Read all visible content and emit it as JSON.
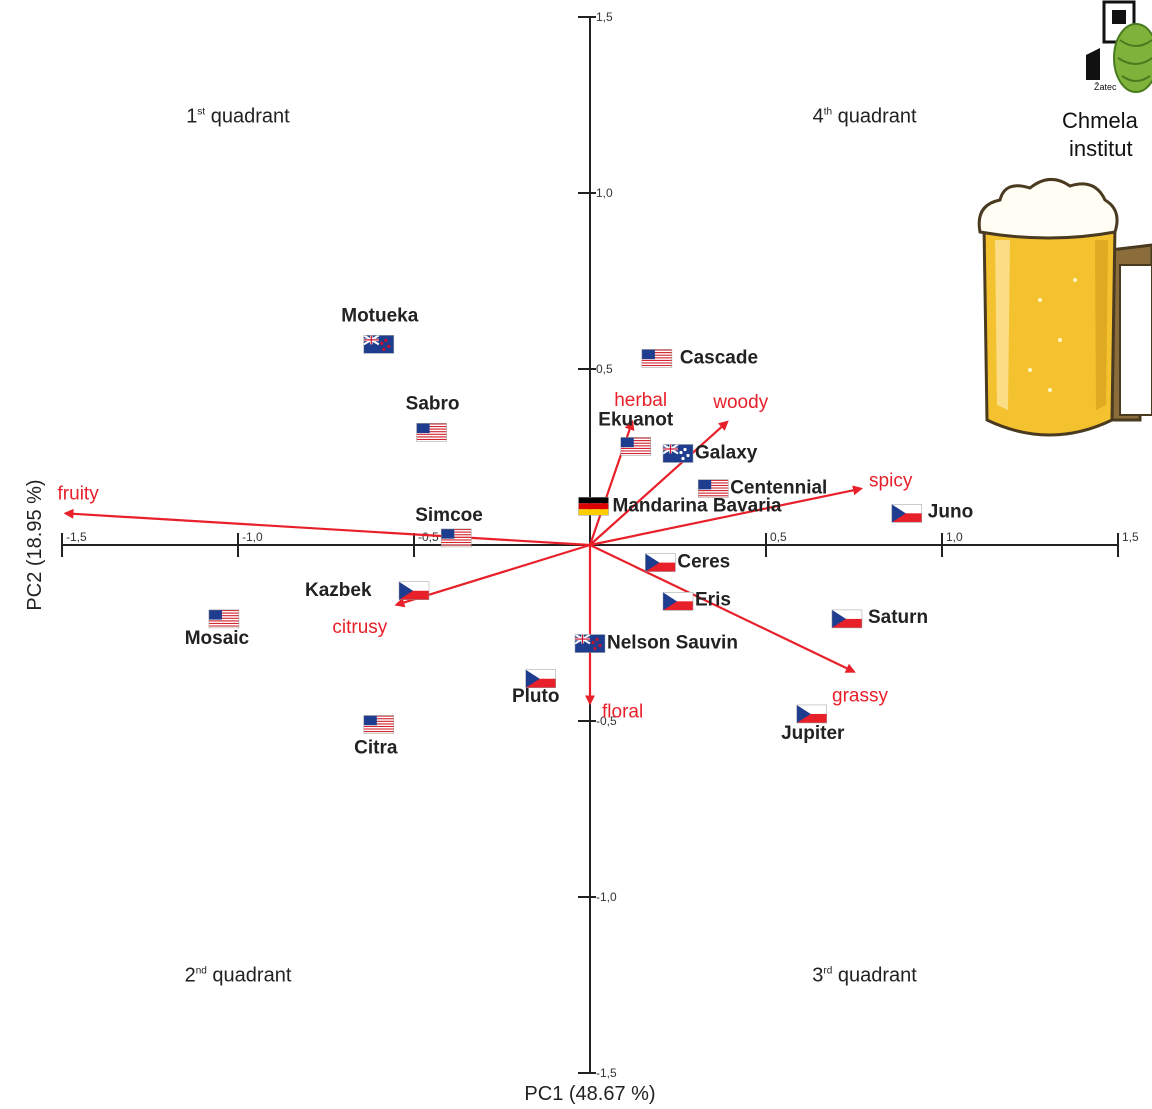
{
  "chart_data": {
    "type": "scatter",
    "subtype": "pca-biplot",
    "xlabel": "PC1 (48.67 %)",
    "ylabel": "PC2 (18.95 %)",
    "xlim": [
      -1.5,
      1.5
    ],
    "ylim": [
      -1.5,
      1.5
    ],
    "x_ticks": [
      -1.5,
      -1.0,
      -0.5,
      0.5,
      1.0,
      1.5
    ],
    "x_tick_labels": [
      "-1,5",
      "-1,0",
      "-0,5",
      "0,5",
      "1,0",
      "1,5"
    ],
    "y_ticks": [
      1.5,
      1.0,
      0.5,
      -0.5,
      -1.0,
      -1.5
    ],
    "y_tick_labels": [
      "1,5",
      "1,0",
      "0,5",
      "-0,5",
      "-1,0",
      "-1,5"
    ],
    "grid": false,
    "quadrants": [
      {
        "id": "q1",
        "ordinal": "1",
        "suffix": "st",
        "text": "quadrant"
      },
      {
        "id": "q4",
        "ordinal": "4",
        "suffix": "th",
        "text": "quadrant"
      },
      {
        "id": "q2",
        "ordinal": "2",
        "suffix": "nd",
        "text": "quadrant"
      },
      {
        "id": "q3",
        "ordinal": "3",
        "suffix": "rd",
        "text": "quadrant"
      }
    ],
    "varieties": [
      {
        "name": "Motueka",
        "flag": "nz-flag",
        "x": -0.6,
        "y": 0.57
      },
      {
        "name": "Sabro",
        "flag": "us-flag",
        "x": -0.45,
        "y": 0.32
      },
      {
        "name": "Cascade",
        "flag": "us-flag",
        "x": 0.19,
        "y": 0.53
      },
      {
        "name": "Ekuanot",
        "flag": "us-flag",
        "x": 0.13,
        "y": 0.28
      },
      {
        "name": "Galaxy",
        "flag": "au-flag",
        "x": 0.25,
        "y": 0.26
      },
      {
        "name": "Centennial",
        "flag": "us-flag",
        "x": 0.35,
        "y": 0.16
      },
      {
        "name": "Mandarina Bavaria",
        "flag": "de-flag",
        "x": 0.01,
        "y": 0.11
      },
      {
        "name": "Juno",
        "flag": "cz-flag",
        "x": 0.9,
        "y": 0.09
      },
      {
        "name": "Simcoe",
        "flag": "us-flag",
        "x": -0.38,
        "y": 0.02
      },
      {
        "name": "Ceres",
        "flag": "cz-flag",
        "x": 0.2,
        "y": -0.05
      },
      {
        "name": "Kazbek",
        "flag": "cz-flag",
        "x": -0.5,
        "y": -0.13
      },
      {
        "name": "Eris",
        "flag": "cz-flag",
        "x": 0.25,
        "y": -0.16
      },
      {
        "name": "Saturn",
        "flag": "cz-flag",
        "x": 0.73,
        "y": -0.21
      },
      {
        "name": "Mosaic",
        "flag": "us-flag",
        "x": -1.04,
        "y": -0.21
      },
      {
        "name": "Nelson Sauvin",
        "flag": "nz-flag",
        "x": 0.0,
        "y": -0.28
      },
      {
        "name": "Pluto",
        "flag": "cz-flag",
        "x": -0.14,
        "y": -0.38
      },
      {
        "name": "Jupiter",
        "flag": "cz-flag",
        "x": 0.63,
        "y": -0.48
      },
      {
        "name": "Citra",
        "flag": "us-flag",
        "x": -0.6,
        "y": -0.51
      }
    ],
    "vectors": [
      {
        "name": "fruity",
        "x": -1.49,
        "y": 0.09
      },
      {
        "name": "herbal",
        "x": 0.12,
        "y": 0.35
      },
      {
        "name": "woody",
        "x": 0.39,
        "y": 0.35
      },
      {
        "name": "spicy",
        "x": 0.77,
        "y": 0.16
      },
      {
        "name": "citrusy",
        "x": -0.55,
        "y": -0.17
      },
      {
        "name": "grassy",
        "x": 0.75,
        "y": -0.36
      },
      {
        "name": "floral",
        "x": 0.0,
        "y": -0.45
      }
    ]
  },
  "logo": {
    "name_line1": "Chmela",
    "name_line2": "institut",
    "place": "Žatec"
  },
  "colors": {
    "vector": "#e8202a",
    "flag_red": "#e8202a",
    "flag_blue": "#1f3d8f",
    "hop_green": "#7fb23b",
    "beer": "#f4c22e"
  }
}
